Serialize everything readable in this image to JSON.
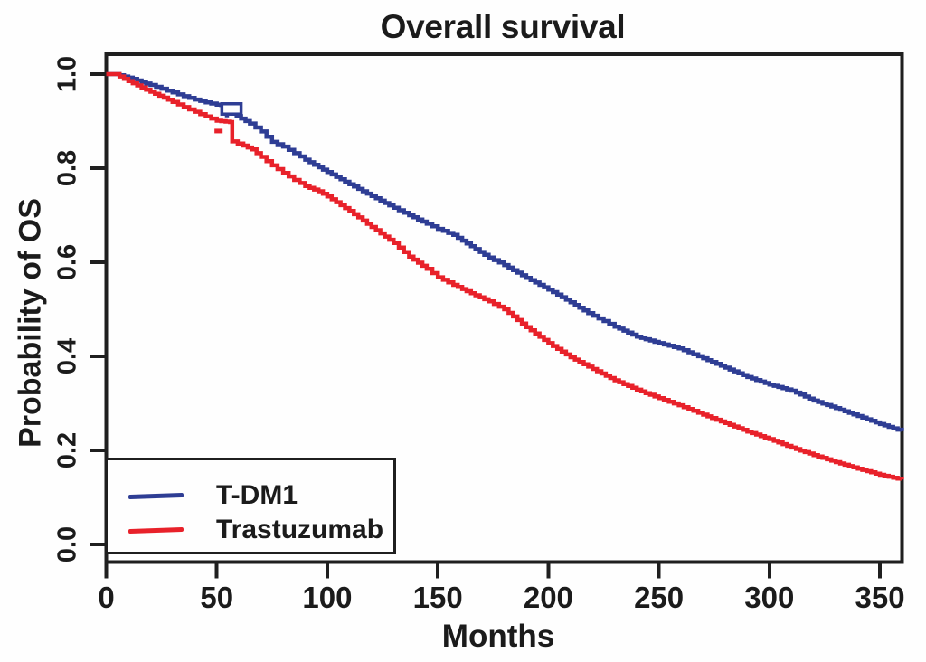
{
  "title": "Overall survival",
  "axes": {
    "x": {
      "label": "Months",
      "ticks": [
        {
          "v": 0,
          "label": "0"
        },
        {
          "v": 50,
          "label": "50"
        },
        {
          "v": 100,
          "label": "100"
        },
        {
          "v": 150,
          "label": "150"
        },
        {
          "v": 200,
          "label": "200"
        },
        {
          "v": 250,
          "label": "250"
        },
        {
          "v": 300,
          "label": "300"
        },
        {
          "v": 350,
          "label": "350"
        }
      ],
      "range": [
        0,
        360
      ]
    },
    "y": {
      "label": "Probability of OS",
      "ticks": [
        {
          "v": 0.0,
          "label": "0.0"
        },
        {
          "v": 0.2,
          "label": "0.2"
        },
        {
          "v": 0.4,
          "label": "0.4"
        },
        {
          "v": 0.6,
          "label": "0.6"
        },
        {
          "v": 0.8,
          "label": "0.8"
        },
        {
          "v": 1.0,
          "label": "1.0"
        }
      ],
      "range": [
        0,
        1
      ]
    }
  },
  "legend": {
    "items": [
      {
        "label": "T-DM1",
        "color": "#2e3d94"
      },
      {
        "label": "Trastuzumab",
        "color": "#e8212a"
      }
    ]
  },
  "colors": {
    "axis": "#1f1f1f",
    "text": "#1b1b1b",
    "background": "#fefefe",
    "tdm1": "#2e3d94",
    "trastuzumab": "#e8212a"
  },
  "chart_data": {
    "type": "line",
    "subtype": "kaplan-meier-step",
    "title": "Overall survival",
    "xlabel": "Months",
    "ylabel": "Probability of OS",
    "xlim": [
      0,
      360
    ],
    "ylim": [
      0,
      1
    ],
    "grid": false,
    "legend_position": "bottom-left-inside",
    "series": [
      {
        "name": "T-DM1",
        "color": "#2e3d94",
        "points": [
          [
            0,
            1.0
          ],
          [
            4,
            1.0
          ],
          [
            8,
            0.995
          ],
          [
            12,
            0.99
          ],
          [
            16,
            0.983
          ],
          [
            20,
            0.977
          ],
          [
            25,
            0.969
          ],
          [
            30,
            0.961
          ],
          [
            35,
            0.953
          ],
          [
            40,
            0.946
          ],
          [
            45,
            0.94
          ],
          [
            50,
            0.935
          ],
          [
            56,
            0.933
          ],
          [
            57,
            0.916
          ],
          [
            65,
            0.895
          ],
          [
            70,
            0.878
          ],
          [
            75,
            0.856
          ],
          [
            80,
            0.846
          ],
          [
            85,
            0.832
          ],
          [
            90,
            0.818
          ],
          [
            96,
            0.802
          ],
          [
            100,
            0.792
          ],
          [
            110,
            0.766
          ],
          [
            120,
            0.741
          ],
          [
            130,
            0.716
          ],
          [
            137,
            0.7
          ],
          [
            145,
            0.682
          ],
          [
            150,
            0.671
          ],
          [
            157,
            0.658
          ],
          [
            165,
            0.634
          ],
          [
            173,
            0.61
          ],
          [
            180,
            0.594
          ],
          [
            190,
            0.567
          ],
          [
            200,
            0.542
          ],
          [
            210,
            0.515
          ],
          [
            218,
            0.492
          ],
          [
            225,
            0.475
          ],
          [
            230,
            0.463
          ],
          [
            240,
            0.442
          ],
          [
            250,
            0.428
          ],
          [
            259,
            0.417
          ],
          [
            270,
            0.396
          ],
          [
            280,
            0.376
          ],
          [
            290,
            0.356
          ],
          [
            300,
            0.34
          ],
          [
            310,
            0.327
          ],
          [
            320,
            0.306
          ],
          [
            330,
            0.29
          ],
          [
            340,
            0.273
          ],
          [
            350,
            0.256
          ],
          [
            360,
            0.241
          ]
        ]
      },
      {
        "name": "Trastuzumab",
        "color": "#e8212a",
        "points": [
          [
            0,
            1.0
          ],
          [
            3,
            1.0
          ],
          [
            6,
            0.995
          ],
          [
            10,
            0.985
          ],
          [
            14,
            0.976
          ],
          [
            18,
            0.967
          ],
          [
            22,
            0.958
          ],
          [
            26,
            0.95
          ],
          [
            30,
            0.941
          ],
          [
            35,
            0.93
          ],
          [
            40,
            0.92
          ],
          [
            45,
            0.91
          ],
          [
            50,
            0.901
          ],
          [
            56,
            0.898
          ],
          [
            57,
            0.857
          ],
          [
            62,
            0.848
          ],
          [
            66,
            0.84
          ],
          [
            70,
            0.824
          ],
          [
            75,
            0.806
          ],
          [
            80,
            0.79
          ],
          [
            85,
            0.775
          ],
          [
            90,
            0.762
          ],
          [
            96,
            0.751
          ],
          [
            100,
            0.74
          ],
          [
            110,
            0.709
          ],
          [
            120,
            0.675
          ],
          [
            130,
            0.641
          ],
          [
            137,
            0.612
          ],
          [
            145,
            0.586
          ],
          [
            150,
            0.568
          ],
          [
            157,
            0.552
          ],
          [
            165,
            0.534
          ],
          [
            173,
            0.517
          ],
          [
            180,
            0.5
          ],
          [
            190,
            0.462
          ],
          [
            200,
            0.428
          ],
          [
            210,
            0.398
          ],
          [
            220,
            0.373
          ],
          [
            230,
            0.349
          ],
          [
            240,
            0.329
          ],
          [
            250,
            0.311
          ],
          [
            259,
            0.296
          ],
          [
            270,
            0.276
          ],
          [
            280,
            0.258
          ],
          [
            290,
            0.24
          ],
          [
            300,
            0.224
          ],
          [
            310,
            0.206
          ],
          [
            320,
            0.19
          ],
          [
            330,
            0.175
          ],
          [
            340,
            0.161
          ],
          [
            350,
            0.148
          ],
          [
            360,
            0.138
          ]
        ]
      }
    ],
    "annotations": {
      "censor_box": {
        "series": "T-DM1",
        "x": [
          52.3,
          61.0
        ],
        "p": [
          0.915,
          0.937
        ]
      },
      "stray_dot": {
        "series": "T-DM1",
        "x": 54.5,
        "p": 0.913
      },
      "stray_dash": {
        "series": "Trastuzumab",
        "x": 50.8,
        "p": 0.879
      }
    }
  }
}
